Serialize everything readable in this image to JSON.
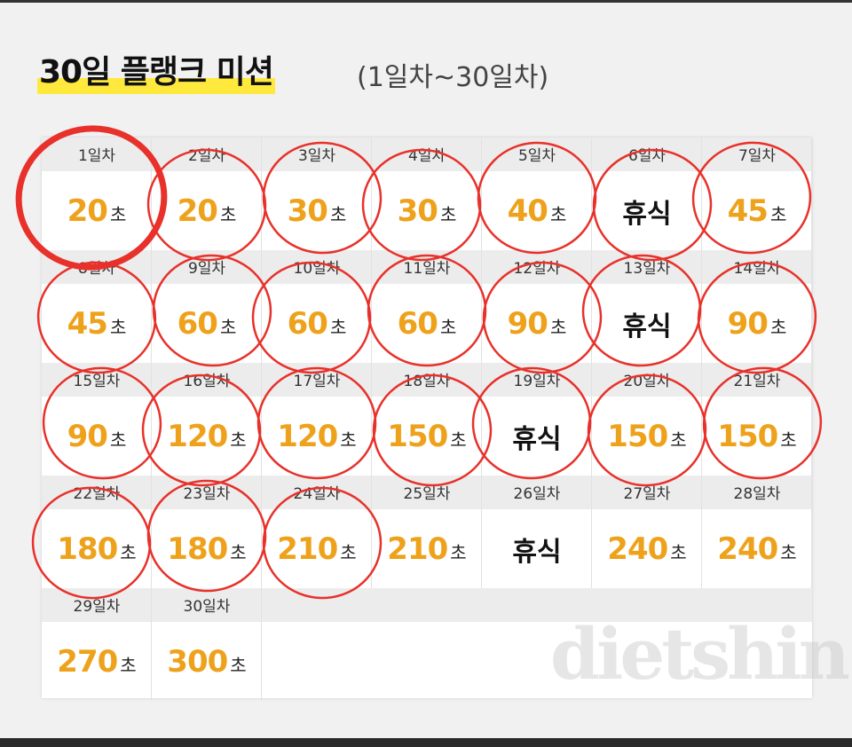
{
  "header": {
    "title": "30일 플랭크 미션",
    "subtitle": "(1일차~30일차)"
  },
  "unit": "초",
  "watermark": "dietshin.com",
  "days": [
    {
      "label": "1일차",
      "value": 20
    },
    {
      "label": "2일차",
      "value": 20
    },
    {
      "label": "3일차",
      "value": 30
    },
    {
      "label": "4일차",
      "value": 30
    },
    {
      "label": "5일차",
      "value": 40
    },
    {
      "label": "6일차",
      "rest": "휴식"
    },
    {
      "label": "7일차",
      "value": 45
    },
    {
      "label": "8일차",
      "value": 45
    },
    {
      "label": "9일차",
      "value": 60
    },
    {
      "label": "10일차",
      "value": 60
    },
    {
      "label": "11일차",
      "value": 60
    },
    {
      "label": "12일차",
      "value": 90
    },
    {
      "label": "13일차",
      "rest": "휴식"
    },
    {
      "label": "14일차",
      "value": 90
    },
    {
      "label": "15일차",
      "value": 90
    },
    {
      "label": "16일차",
      "value": 120
    },
    {
      "label": "17일차",
      "value": 120
    },
    {
      "label": "18일차",
      "value": 150
    },
    {
      "label": "19일차",
      "rest": "휴식"
    },
    {
      "label": "20일차",
      "value": 150
    },
    {
      "label": "21일차",
      "value": 150
    },
    {
      "label": "22일차",
      "value": 180
    },
    {
      "label": "23일차",
      "value": 180
    },
    {
      "label": "24일차",
      "value": 210
    },
    {
      "label": "25일차",
      "value": 210
    },
    {
      "label": "26일차",
      "rest": "휴식"
    },
    {
      "label": "27일차",
      "value": 240
    },
    {
      "label": "28일차",
      "value": 240
    },
    {
      "label": "29일차",
      "value": 270
    },
    {
      "label": "30일차",
      "value": 300
    }
  ]
}
